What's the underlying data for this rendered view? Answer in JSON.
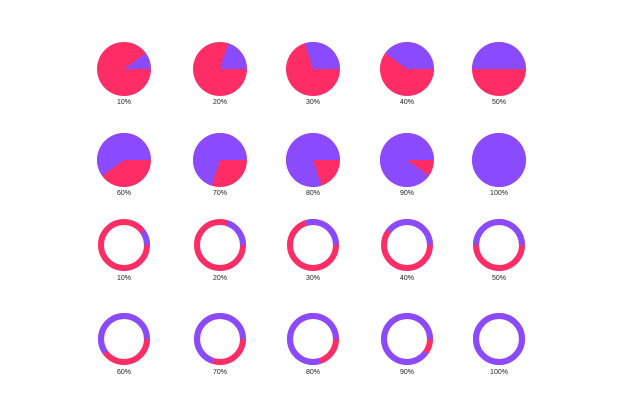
{
  "chart_data": [
    {
      "type": "pie",
      "style": "pie",
      "start": "3 o'clock, counter-clockwise",
      "colors": {
        "progress": "#8a4bff",
        "remainder": "#ff2d66"
      },
      "items": [
        {
          "label": "10%",
          "value": 10
        },
        {
          "label": "20%",
          "value": 20
        },
        {
          "label": "30%",
          "value": 30
        },
        {
          "label": "40%",
          "value": 40
        },
        {
          "label": "50%",
          "value": 50
        },
        {
          "label": "60%",
          "value": 60
        },
        {
          "label": "70%",
          "value": 70
        },
        {
          "label": "80%",
          "value": 80
        },
        {
          "label": "90%",
          "value": 90
        },
        {
          "label": "100%",
          "value": 100
        }
      ]
    },
    {
      "type": "pie",
      "style": "donut",
      "start": "3 o'clock, counter-clockwise",
      "colors": {
        "progress": "#8a4bff",
        "remainder": "#ff2d66"
      },
      "items": [
        {
          "label": "10%",
          "value": 10
        },
        {
          "label": "20%",
          "value": 20
        },
        {
          "label": "30%",
          "value": 30
        },
        {
          "label": "40%",
          "value": 40
        },
        {
          "label": "50%",
          "value": 50
        },
        {
          "label": "60%",
          "value": 60
        },
        {
          "label": "70%",
          "value": 70
        },
        {
          "label": "80%",
          "value": 80
        },
        {
          "label": "90%",
          "value": 90
        },
        {
          "label": "100%",
          "value": 100
        }
      ]
    }
  ]
}
